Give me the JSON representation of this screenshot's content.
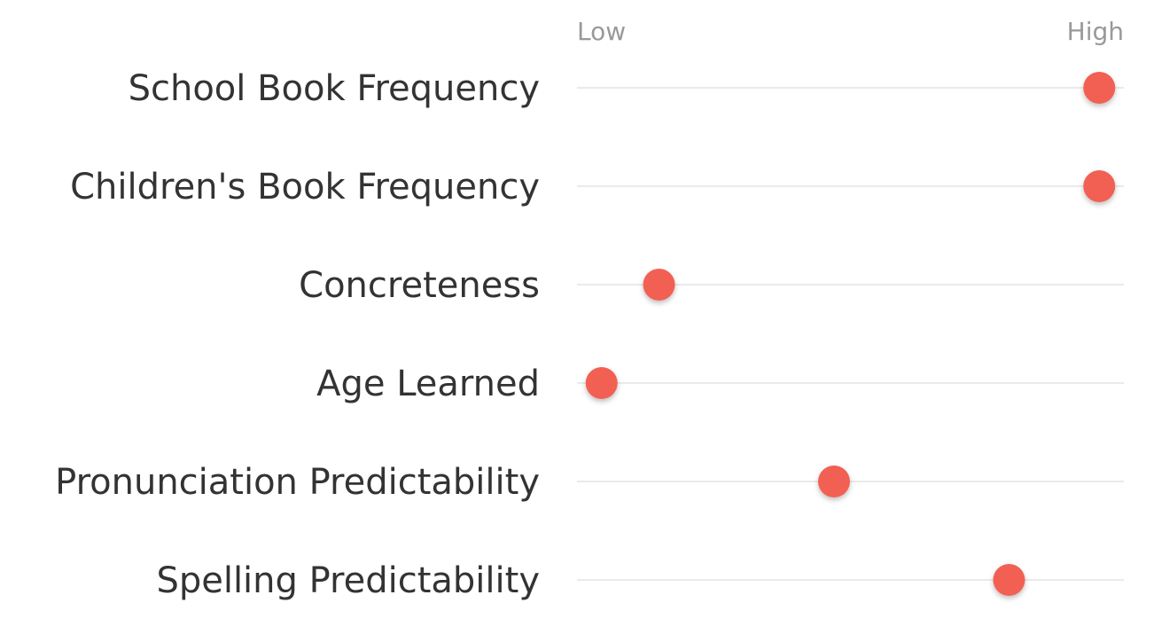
{
  "chart_data": {
    "type": "scatter",
    "title": "",
    "xlabel": "",
    "ylabel": "",
    "x_tick_labels": [
      "Low",
      "High"
    ],
    "xlim": [
      0,
      1
    ],
    "grid": false,
    "categories": [
      "School Book Frequency",
      "Children's Book Frequency",
      "Concreteness",
      "Age Learned",
      "Pronunciation Predictability",
      "Spelling Predictability"
    ],
    "values": [
      0.955,
      0.955,
      0.15,
      0.045,
      0.47,
      0.79
    ],
    "colors": {
      "dot": "#f26052",
      "line": "#d6d6d6",
      "label": "#333333",
      "axis": "#999999"
    }
  }
}
